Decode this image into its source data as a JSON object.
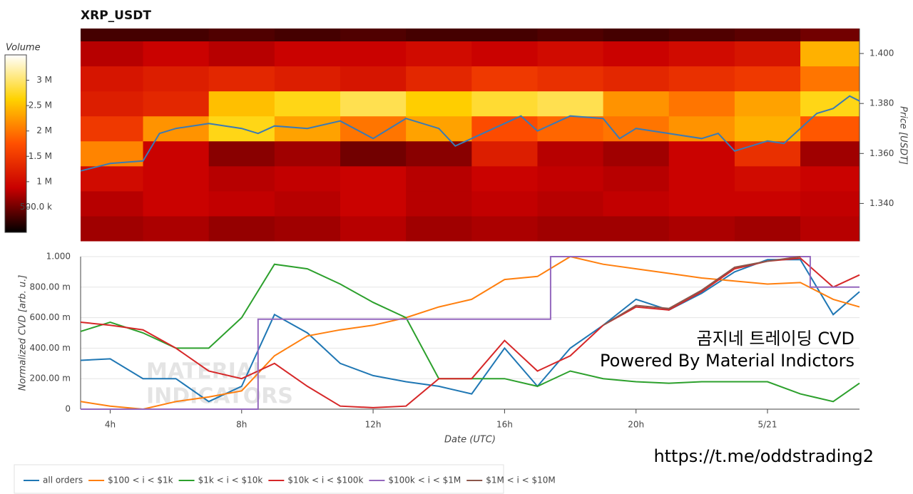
{
  "chart_data": [
    {
      "type": "heatmap",
      "title": "XRP_USDT",
      "ylabel": "Price [USDT]",
      "ylim": [
        1.325,
        1.41
      ],
      "yticks": [
        {
          "value": 1.34,
          "label": "1.340"
        },
        {
          "value": 1.36,
          "label": "1.360"
        },
        {
          "value": 1.38,
          "label": "1.380"
        },
        {
          "value": 1.4,
          "label": "1.400"
        }
      ],
      "xlim": [
        3.1,
        26.8
      ],
      "x_bins": [
        3.1,
        5,
        7,
        9,
        11,
        13,
        15,
        17,
        19,
        21,
        23,
        25,
        26.8
      ],
      "y_bins": [
        1.325,
        1.335,
        1.345,
        1.355,
        1.365,
        1.375,
        1.385,
        1.395,
        1.405,
        1.41
      ],
      "z": [
        [
          700000,
          750000,
          650000,
          700000,
          800000,
          700000,
          750000,
          700000,
          700000,
          750000,
          700000,
          800000
        ],
        [
          800000,
          900000,
          850000,
          800000,
          900000,
          800000,
          850000,
          800000,
          850000,
          900000,
          900000,
          850000
        ],
        [
          1000000,
          900000,
          800000,
          850000,
          900000,
          800000,
          900000,
          850000,
          800000,
          900000,
          1000000,
          900000
        ],
        [
          2100000,
          900000,
          600000,
          700000,
          500000,
          600000,
          1200000,
          800000,
          700000,
          900000,
          1400000,
          700000
        ],
        [
          1500000,
          2200000,
          2700000,
          2300000,
          2000000,
          2300000,
          1700000,
          1900000,
          2000000,
          2200000,
          2400000,
          1800000
        ],
        [
          1200000,
          1300000,
          2500000,
          2700000,
          2900000,
          2600000,
          2800000,
          2900000,
          2200000,
          2000000,
          2300000,
          2700000
        ],
        [
          1100000,
          1200000,
          1300000,
          1200000,
          1100000,
          1300000,
          1500000,
          1400000,
          1300000,
          1400000,
          1500000,
          2000000
        ],
        [
          800000,
          900000,
          800000,
          900000,
          900000,
          1000000,
          900000,
          1000000,
          900000,
          1000000,
          1100000,
          2400000
        ],
        [
          300000,
          300000,
          350000,
          300000,
          350000,
          300000,
          300000,
          350000,
          300000,
          350000,
          400000,
          500000
        ]
      ],
      "colorbar": {
        "title": "Volume",
        "clim": [
          0,
          3500000
        ],
        "ticks": [
          {
            "value": 500000,
            "label": "500.0 k"
          },
          {
            "value": 1000000,
            "label": "1 M"
          },
          {
            "value": 1500000,
            "label": "1.5 M"
          },
          {
            "value": 2000000,
            "label": "2 M"
          },
          {
            "value": 2500000,
            "label": "2.5 M"
          },
          {
            "value": 3000000,
            "label": "3 M"
          }
        ]
      },
      "colorscale": [
        "#000000",
        "#c80000",
        "#ff5000",
        "#ffd200",
        "#ffffff"
      ],
      "price": {
        "color": "#3a7ab5",
        "x": [
          3.1,
          4,
          5,
          5.5,
          6,
          7,
          8,
          8.5,
          9,
          10,
          11,
          12,
          13,
          14,
          14.5,
          15,
          16,
          16.5,
          17,
          18,
          19,
          19.5,
          20,
          21,
          22,
          22.5,
          23,
          24,
          24.5,
          25,
          25.5,
          26,
          26.5,
          26.8
        ],
        "values": [
          1.353,
          1.356,
          1.357,
          1.368,
          1.37,
          1.372,
          1.37,
          1.368,
          1.371,
          1.37,
          1.373,
          1.366,
          1.374,
          1.37,
          1.363,
          1.366,
          1.372,
          1.375,
          1.369,
          1.375,
          1.374,
          1.366,
          1.37,
          1.368,
          1.366,
          1.368,
          1.361,
          1.365,
          1.364,
          1.37,
          1.376,
          1.378,
          1.383,
          1.381
        ]
      }
    },
    {
      "type": "line",
      "ylabel": "Normalized CVD [arb. u.]",
      "xlabel": "Date (UTC)",
      "xlim": [
        3.1,
        26.8
      ],
      "xticks": [
        {
          "value": 4,
          "label": "4h"
        },
        {
          "value": 8,
          "label": "8h"
        },
        {
          "value": 12,
          "label": "12h"
        },
        {
          "value": 16,
          "label": "16h"
        },
        {
          "value": 20,
          "label": "20h"
        },
        {
          "value": 24,
          "label": "5/21"
        }
      ],
      "ylim": [
        0,
        1
      ],
      "yticks": [
        0,
        {
          "value": 0.2,
          "label": "200.00 m"
        },
        {
          "value": 0.4,
          "label": "400.00 m"
        },
        {
          "value": 0.6,
          "label": "600.00 m"
        },
        {
          "value": 0.8,
          "label": "800.00 m"
        },
        {
          "value": 1,
          "label": "1.000"
        }
      ],
      "grid": true,
      "x": [
        3.1,
        4,
        5,
        6,
        7,
        8,
        9,
        10,
        11,
        12,
        13,
        14,
        15,
        16,
        17,
        18,
        19,
        20,
        21,
        22,
        23,
        24,
        25,
        26,
        26.8
      ],
      "series": [
        {
          "name": "all orders",
          "color": "#1f77b4",
          "values": [
            0.32,
            0.33,
            0.2,
            0.2,
            0.05,
            0.15,
            0.62,
            0.5,
            0.3,
            0.22,
            0.18,
            0.15,
            0.1,
            0.4,
            0.15,
            0.4,
            0.55,
            0.72,
            0.65,
            0.76,
            0.9,
            0.98,
            0.98,
            0.62,
            0.77
          ]
        },
        {
          "name": "$100 < i < $1k",
          "color": "#ff7f0e",
          "values": [
            0.05,
            0.02,
            0,
            0.05,
            0.08,
            0.12,
            0.35,
            0.48,
            0.52,
            0.55,
            0.6,
            0.67,
            0.72,
            0.85,
            0.87,
            1,
            0.95,
            0.92,
            0.89,
            0.86,
            0.84,
            0.82,
            0.83,
            0.72,
            0.67
          ]
        },
        {
          "name": "$1k < i < $10k",
          "color": "#2ca02c",
          "values": [
            0.51,
            0.57,
            0.5,
            0.4,
            0.4,
            0.6,
            0.95,
            0.92,
            0.82,
            0.7,
            0.6,
            0.2,
            0.2,
            0.2,
            0.15,
            0.25,
            0.2,
            0.18,
            0.17,
            0.18,
            0.18,
            0.18,
            0.1,
            0.05,
            0.17
          ]
        },
        {
          "name": "$10k < i < $100k",
          "color": "#d62728",
          "values": [
            0.57,
            0.55,
            0.52,
            0.4,
            0.25,
            0.2,
            0.3,
            0.15,
            0.02,
            0.01,
            0.02,
            0.2,
            0.2,
            0.45,
            0.25,
            0.35,
            0.55,
            0.67,
            0.65,
            0.77,
            0.92,
            0.97,
            0.99,
            0.8,
            0.88
          ]
        },
        {
          "name": "$100k < i < $1M",
          "color": "#9467bd",
          "x": [
            3.1,
            8.5,
            8.5,
            17.4,
            17.4,
            25.3,
            25.3,
            26.8
          ],
          "values": [
            0,
            0,
            0.59,
            0.59,
            1,
            1,
            0.8,
            0.8
          ]
        },
        {
          "name": "$1M < i < $10M",
          "color": "#8c564b",
          "x": [
            19,
            20,
            21,
            22,
            23,
            24,
            25
          ],
          "values": [
            0.55,
            0.68,
            0.66,
            0.78,
            0.93,
            0.97,
            1
          ]
        }
      ],
      "watermark": [
        "MATERIAL",
        "INDICATORS"
      ],
      "annotations": [
        "곰지네 트레이딩 CVD",
        "Powered By Material Indictors",
        "https://t.me/oddstrading2"
      ]
    }
  ]
}
